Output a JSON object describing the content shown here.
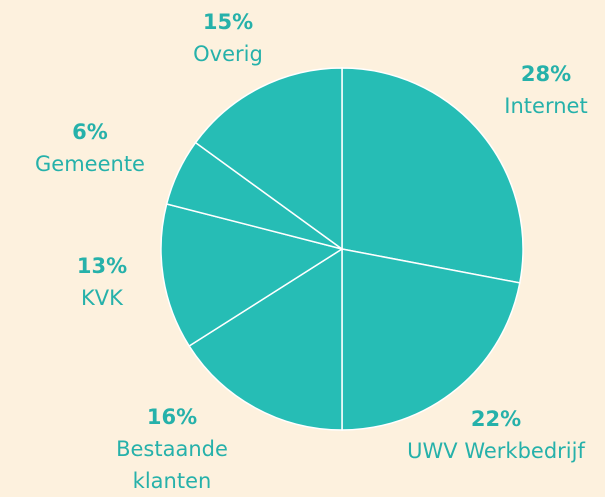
{
  "chart_data": {
    "type": "pie",
    "categories": [
      "Internet",
      "UWV Werkbedrijf",
      "Bestaande klanten",
      "KVK",
      "Gemeente",
      "Overig"
    ],
    "values": [
      28,
      22,
      16,
      13,
      6,
      15
    ],
    "value_labels": [
      "28%",
      "22%",
      "16%",
      "13%",
      "6%",
      "15%"
    ],
    "color": "#26bdb5"
  }
}
